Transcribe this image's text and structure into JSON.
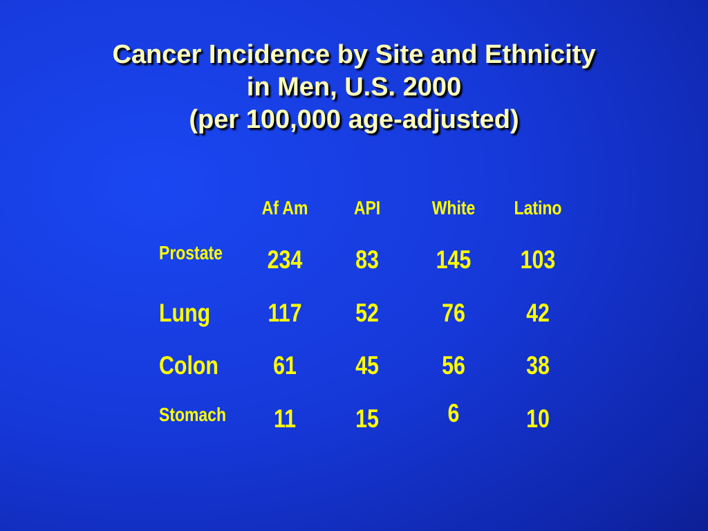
{
  "slide": {
    "title_lines": [
      "Cancer Incidence by Site and Ethnicity",
      "in Men, U.S. 2000",
      "(per 100,000 age-adjusted)"
    ]
  },
  "table": {
    "columns": [
      "Af Am",
      "API",
      "White",
      "Latino"
    ],
    "rows": [
      {
        "label": "Prostate",
        "values": [
          "234",
          "83",
          "145",
          "103"
        ]
      },
      {
        "label": "Lung",
        "values": [
          "117",
          "52",
          "76",
          "42"
        ]
      },
      {
        "label": "Colon",
        "values": [
          "61",
          "45",
          "56",
          "38"
        ]
      },
      {
        "label": "Stomach",
        "values": [
          "11",
          "15",
          "6",
          "10"
        ]
      }
    ]
  },
  "colors": {
    "title": "#ffffb8",
    "table_text": "#ffff00",
    "background": "#1638d8"
  }
}
